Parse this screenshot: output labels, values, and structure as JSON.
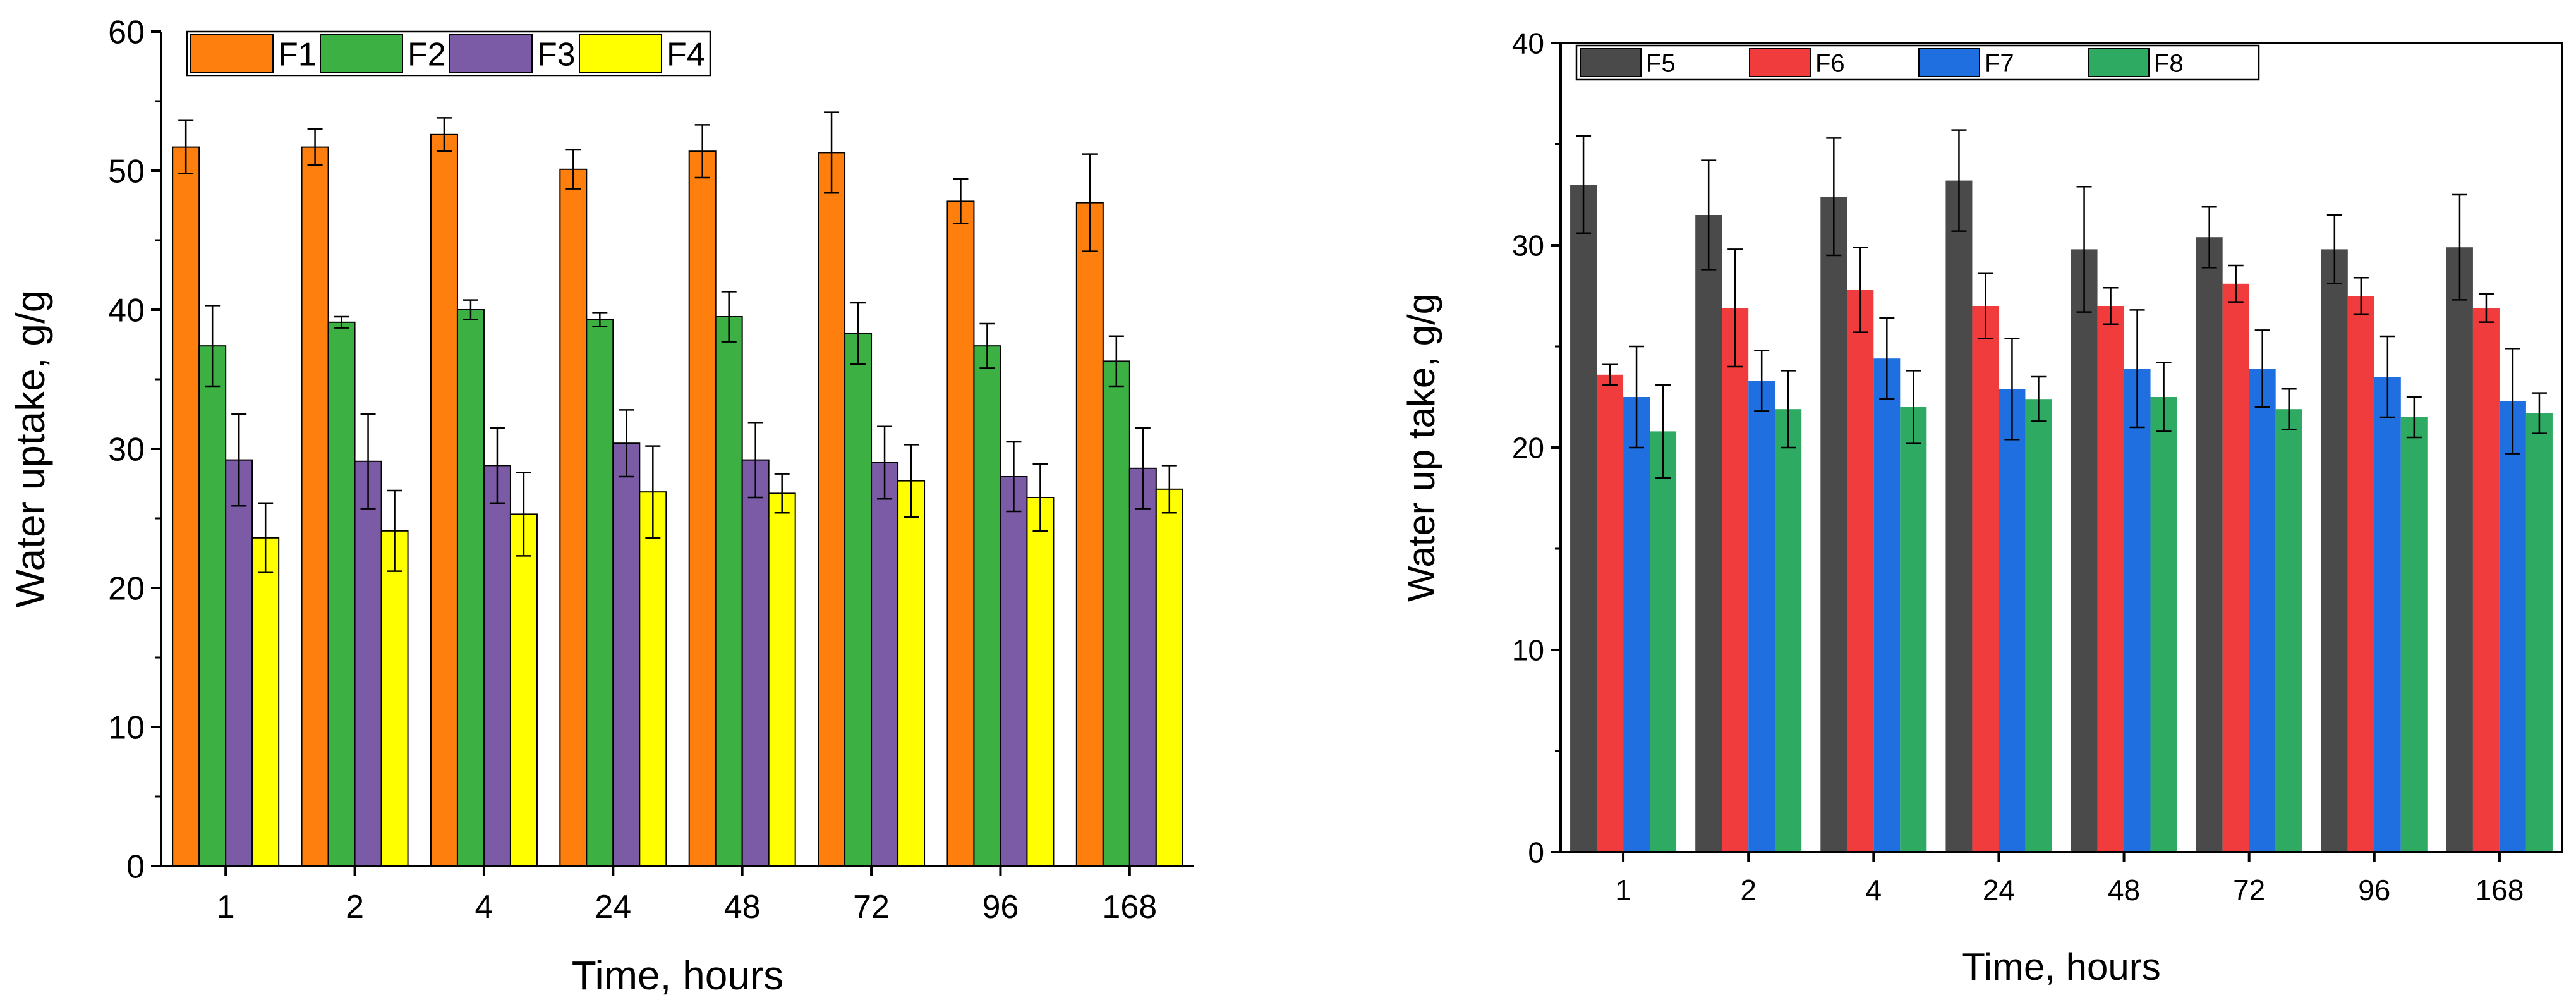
{
  "chart_data": [
    {
      "type": "bar",
      "title": "",
      "xlabel": "Time, hours",
      "ylabel": "Water uptake, g/g",
      "ylim": [
        0,
        60
      ],
      "yticks": [
        "0",
        "10",
        "20",
        "30",
        "40",
        "50",
        "60"
      ],
      "yticks_values": [
        0,
        10,
        20,
        30,
        40,
        50,
        60
      ],
      "categories": [
        "1",
        "2",
        "4",
        "24",
        "48",
        "72",
        "96",
        "168"
      ],
      "legend_position": "top",
      "series": [
        {
          "name": "F1",
          "color": "#ff7f0e",
          "values": [
            51.7,
            51.7,
            52.6,
            50.1,
            51.4,
            51.3,
            47.8,
            47.7
          ],
          "errors": [
            1.9,
            1.3,
            1.2,
            1.4,
            1.9,
            2.9,
            1.6,
            3.5
          ]
        },
        {
          "name": "F2",
          "color": "#3cb043",
          "values": [
            37.4,
            39.1,
            40.0,
            39.3,
            39.5,
            38.3,
            37.4,
            36.3
          ],
          "errors": [
            2.9,
            0.4,
            0.7,
            0.5,
            1.8,
            2.2,
            1.6,
            1.8
          ]
        },
        {
          "name": "F3",
          "color": "#7b5aa6",
          "values": [
            29.2,
            29.1,
            28.8,
            30.4,
            29.2,
            29.0,
            28.0,
            28.6
          ],
          "errors": [
            3.3,
            3.4,
            2.7,
            2.4,
            2.7,
            2.6,
            2.5,
            2.9
          ]
        },
        {
          "name": "F4",
          "color": "#ffff00",
          "values": [
            23.6,
            24.1,
            25.3,
            26.9,
            26.8,
            27.7,
            26.5,
            27.1
          ],
          "errors": [
            2.5,
            2.9,
            3.0,
            3.3,
            1.4,
            2.6,
            2.4,
            1.7
          ]
        }
      ]
    },
    {
      "type": "bar",
      "title": "",
      "xlabel": "Time, hours",
      "ylabel": "Water up take, g/g",
      "ylim": [
        0,
        40
      ],
      "yticks": [
        "0",
        "10",
        "20",
        "30",
        "40"
      ],
      "yticks_values": [
        0,
        10,
        20,
        30,
        40
      ],
      "categories": [
        "1",
        "2",
        "4",
        "24",
        "48",
        "72",
        "96",
        "168"
      ],
      "legend_position": "top",
      "series": [
        {
          "name": "F5",
          "color": "#4a4a4a",
          "values": [
            33.0,
            31.5,
            32.4,
            33.2,
            29.8,
            30.4,
            29.8,
            29.9
          ],
          "errors": [
            2.4,
            2.7,
            2.9,
            2.5,
            3.1,
            1.5,
            1.7,
            2.6
          ]
        },
        {
          "name": "F6",
          "color": "#f03c3c",
          "values": [
            23.6,
            26.9,
            27.8,
            27.0,
            27.0,
            28.1,
            27.5,
            26.9
          ],
          "errors": [
            0.5,
            2.9,
            2.1,
            1.6,
            0.9,
            0.9,
            0.9,
            0.7
          ]
        },
        {
          "name": "F7",
          "color": "#1f6fe0",
          "values": [
            22.5,
            23.3,
            24.4,
            22.9,
            23.9,
            23.9,
            23.5,
            22.3
          ],
          "errors": [
            2.5,
            1.5,
            2.0,
            2.5,
            2.9,
            1.9,
            2.0,
            2.6
          ]
        },
        {
          "name": "F8",
          "color": "#2eaa62",
          "values": [
            20.8,
            21.9,
            22.0,
            22.4,
            22.5,
            21.9,
            21.5,
            21.7
          ],
          "errors": [
            2.3,
            1.9,
            1.8,
            1.1,
            1.7,
            1.0,
            1.0,
            1.0
          ]
        }
      ]
    }
  ]
}
